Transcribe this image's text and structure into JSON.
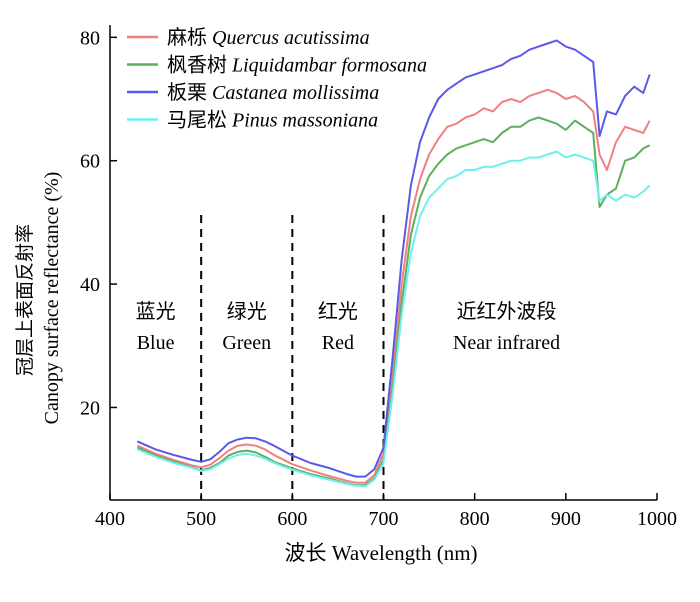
{
  "chart_data": {
    "type": "line",
    "xlabel": "波长 Wavelength (nm)",
    "ylabel_cn": "冠层上表面反射率",
    "ylabel_en": "Canopy surface reflectance (%)",
    "xlim": [
      400,
      1000
    ],
    "ylim": [
      5,
      82
    ],
    "xticks": [
      400,
      500,
      600,
      700,
      800,
      900,
      1000
    ],
    "yticks": [
      20,
      40,
      60,
      80
    ],
    "grid": false,
    "legend_position": "top-left",
    "band_dividers": [
      500,
      600,
      700
    ],
    "band_labels": [
      {
        "cn": "蓝光",
        "en": "Blue",
        "x": 450
      },
      {
        "cn": "绿光",
        "en": "Green",
        "x": 550
      },
      {
        "cn": "红光",
        "en": "Red",
        "x": 650
      },
      {
        "cn": "近红外波段",
        "en": "Near infrared",
        "x": 835
      }
    ],
    "x": [
      430,
      450,
      470,
      490,
      500,
      510,
      520,
      530,
      540,
      550,
      560,
      570,
      580,
      600,
      620,
      640,
      660,
      670,
      680,
      690,
      700,
      710,
      720,
      730,
      740,
      750,
      760,
      770,
      780,
      790,
      800,
      810,
      820,
      830,
      840,
      850,
      860,
      870,
      880,
      890,
      900,
      910,
      920,
      930,
      937,
      945,
      955,
      965,
      975,
      985,
      992
    ],
    "series": [
      {
        "name": "麻栎",
        "name_latin": "Quercus acutissima",
        "color": "#f08080",
        "values": [
          13.8,
          12.5,
          11.5,
          10.6,
          10.3,
          10.7,
          11.8,
          13.0,
          13.8,
          14.0,
          13.8,
          13.2,
          12.3,
          10.8,
          9.8,
          8.9,
          8.1,
          7.8,
          7.8,
          9.0,
          12.5,
          25,
          40,
          51,
          57,
          61,
          63.5,
          65.5,
          66,
          67,
          67.5,
          68.5,
          68,
          69.5,
          70,
          69.5,
          70.5,
          71,
          71.5,
          71,
          70,
          70.5,
          69.5,
          68,
          61,
          58.5,
          63,
          65.5,
          65,
          64.5,
          66.5
        ]
      },
      {
        "name": "枫香树",
        "name_latin": "Liquidambar formosana",
        "color": "#5fae5f",
        "values": [
          13.5,
          12.2,
          11.2,
          10.3,
          9.8,
          10.2,
          11.0,
          12.2,
          12.8,
          13.0,
          12.7,
          12.0,
          11.2,
          10.1,
          9.2,
          8.5,
          7.7,
          7.4,
          7.4,
          8.5,
          11.5,
          23,
          37,
          48,
          54,
          57.5,
          59.5,
          61,
          62,
          62.5,
          63,
          63.5,
          63,
          64.5,
          65.5,
          65.5,
          66.5,
          67,
          66.5,
          66,
          65,
          66.5,
          65.5,
          64.5,
          52.5,
          54.5,
          55.5,
          60,
          60.5,
          62,
          62.5
        ]
      },
      {
        "name": "板栗",
        "name_latin": "Castanea mollissima",
        "color": "#5a5ae6",
        "values": [
          14.5,
          13.2,
          12.3,
          11.5,
          11.2,
          11.6,
          12.8,
          14.2,
          14.8,
          15.1,
          15.0,
          14.5,
          13.8,
          12.2,
          11.0,
          10.2,
          9.2,
          8.8,
          8.8,
          10.0,
          13.5,
          28,
          44,
          56,
          63,
          67,
          70,
          71.5,
          72.5,
          73.5,
          74,
          74.5,
          75,
          75.5,
          76.5,
          77,
          78,
          78.5,
          79,
          79.5,
          78.5,
          78,
          77,
          76,
          64,
          68,
          67.5,
          70.5,
          72,
          71,
          74
        ]
      },
      {
        "name": "马尾松",
        "name_latin": "Pinus massoniana",
        "color": "#6ff0f0",
        "values": [
          13.2,
          12.0,
          11.0,
          10.2,
          9.7,
          10.0,
          10.8,
          11.7,
          12.3,
          12.5,
          12.2,
          11.7,
          11.0,
          9.9,
          9.0,
          8.3,
          7.6,
          7.3,
          7.2,
          8.3,
          11.0,
          22,
          35,
          45,
          51,
          54,
          55.5,
          57,
          57.5,
          58.5,
          58.5,
          59,
          59,
          59.5,
          60,
          60,
          60.5,
          60.5,
          61,
          61.5,
          60.5,
          61,
          60.5,
          60,
          53.5,
          54.5,
          53.5,
          54.5,
          54,
          55,
          56
        ]
      }
    ]
  }
}
